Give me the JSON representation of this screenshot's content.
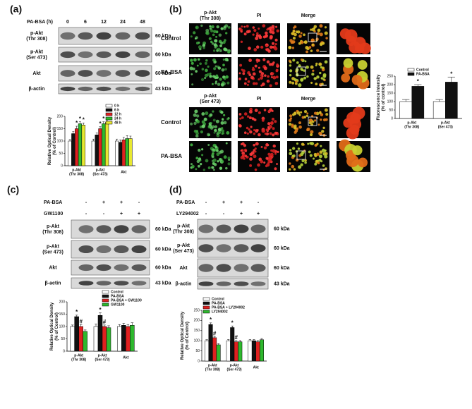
{
  "panels": {
    "a": {
      "label": "(a)",
      "treatment": "PA-BSA (h)",
      "lanes": [
        "0",
        "6",
        "12",
        "24",
        "48"
      ],
      "rows": [
        [
          "p-Akt",
          "(Thr 308)"
        ],
        [
          "p-Akt",
          "(Ser 473)"
        ],
        [
          "Akt"
        ],
        [
          "β-actin"
        ]
      ],
      "sizes": [
        "60 kDa",
        "60 kDa",
        "60 kDa",
        "43 kDa"
      ]
    },
    "b": {
      "label": "(b)",
      "blocks": [
        {
          "columns": [
            [
              "p-Akt",
              "(Thr 308)"
            ],
            [
              "PI"
            ],
            [
              "Merge"
            ]
          ],
          "rows": [
            "Control",
            "PA-BSA"
          ]
        },
        {
          "columns": [
            [
              "p-Akt",
              "(Ser 473)"
            ],
            [
              "PI"
            ],
            [
              "Merge"
            ]
          ],
          "rows": [
            "Control",
            "PA-BSA"
          ]
        }
      ]
    },
    "c": {
      "label": "(c)",
      "treatments": [
        {
          "name": "PA-BSA",
          "signs": [
            "-",
            "+",
            "+",
            "-"
          ]
        },
        {
          "name": "GW1100",
          "signs": [
            "-",
            "-",
            "+",
            "+"
          ]
        }
      ],
      "rows": [
        [
          "p-Akt",
          "(Thr 308)"
        ],
        [
          "p-Akt",
          "(Ser 473)"
        ],
        [
          "Akt"
        ],
        [
          "β-actin"
        ]
      ],
      "sizes": [
        "60 kDa",
        "60 kDa",
        "60 kDa",
        "43 kDa"
      ]
    },
    "d": {
      "label": "(d)",
      "treatments": [
        {
          "name": "PA-BSA",
          "signs": [
            "-",
            "+",
            "+",
            "-"
          ]
        },
        {
          "name": "LY294002",
          "signs": [
            "-",
            "-",
            "+",
            "+"
          ]
        }
      ],
      "rows": [
        [
          "p-Akt",
          "(Thr 308)"
        ],
        [
          "p-Akt",
          "(Ser 473)"
        ],
        [
          "Akt"
        ],
        [
          "β-actin"
        ]
      ],
      "sizes": [
        "60 kDa",
        "60 kDa",
        "60 kDa",
        "43 kDa"
      ]
    }
  },
  "chart_data": [
    {
      "type": "bar",
      "ylabel": [
        "Relative Optical Density",
        "(% of Control)"
      ],
      "categories": [
        [
          "p-Akt",
          "(Thr 308)"
        ],
        [
          "p-Akt",
          "(Ser 473)"
        ],
        [
          "Akt"
        ]
      ],
      "ylim": [
        0,
        200
      ],
      "yticks": [
        0,
        50,
        100,
        150,
        200
      ],
      "series": [
        {
          "name": "0 h",
          "color": "#ffffff",
          "values": [
            100,
            100,
            100
          ],
          "errors": [
            6,
            8,
            8
          ],
          "marks": [
            null,
            null,
            null
          ]
        },
        {
          "name": "6 h",
          "color": "#111111",
          "values": [
            130,
            125,
            95
          ],
          "errors": [
            8,
            8,
            10
          ],
          "marks": [
            null,
            null,
            null
          ]
        },
        {
          "name": "12 h",
          "color": "#e02020",
          "values": [
            150,
            150,
            105
          ],
          "errors": [
            10,
            8,
            10
          ],
          "marks": [
            "*",
            "*",
            null
          ]
        },
        {
          "name": "24 h",
          "color": "#2eb82e",
          "values": [
            170,
            170,
            110
          ],
          "errors": [
            8,
            8,
            12
          ],
          "marks": [
            "*",
            "*",
            null
          ]
        },
        {
          "name": "48 h",
          "color": "#e8e830",
          "values": [
            165,
            175,
            110
          ],
          "errors": [
            8,
            8,
            10
          ],
          "marks": [
            "*",
            null,
            null
          ]
        }
      ]
    },
    {
      "type": "bar",
      "ylabel": [
        "Fluorescence intensity",
        "(% of control)"
      ],
      "categories": [
        [
          "p-Akt",
          "(Thr 308)"
        ],
        [
          "p-Akt",
          "(Ser 473)"
        ]
      ],
      "ylim": [
        0,
        250
      ],
      "yticks": [
        0,
        50,
        100,
        150,
        200,
        250
      ],
      "series": [
        {
          "name": "Control",
          "color": "#ffffff",
          "values": [
            100,
            100
          ],
          "errors": [
            12,
            12
          ],
          "marks": [
            null,
            null
          ]
        },
        {
          "name": "PA-BSA",
          "color": "#111111",
          "values": [
            190,
            215
          ],
          "errors": [
            10,
            30
          ],
          "marks": [
            "*",
            "*"
          ]
        }
      ]
    },
    {
      "type": "bar",
      "ylabel": [
        "Relative Optical Density",
        "(% of Control)"
      ],
      "categories": [
        [
          "p-Akt",
          "(Thr 308)"
        ],
        [
          "p-Akt",
          "(Ser 473)"
        ],
        [
          "Akt"
        ]
      ],
      "ylim": [
        0,
        200
      ],
      "yticks": [
        0,
        50,
        100,
        150,
        200
      ],
      "series": [
        {
          "name": "Control",
          "color": "#ffffff",
          "values": [
            100,
            100,
            100
          ],
          "errors": [
            6,
            10,
            8
          ],
          "marks": [
            null,
            null,
            null
          ]
        },
        {
          "name": "PA-BSA",
          "color": "#111111",
          "values": [
            140,
            145,
            105
          ],
          "errors": [
            6,
            10,
            8
          ],
          "marks": [
            "*",
            "*",
            null
          ]
        },
        {
          "name": "PA-BSA + GW1100",
          "color": "#e02020",
          "values": [
            100,
            100,
            100
          ],
          "errors": [
            8,
            6,
            8
          ],
          "marks": [
            "#",
            "#",
            null
          ]
        },
        {
          "name": "GW1100",
          "color": "#2eb82e",
          "values": [
            80,
            95,
            105
          ],
          "errors": [
            6,
            8,
            10
          ],
          "marks": [
            null,
            null,
            null
          ]
        }
      ]
    },
    {
      "type": "bar",
      "ylabel": [
        "Relative Optical Density",
        "(% of Control)"
      ],
      "categories": [
        [
          "p-Akt",
          "(Thr 308)"
        ],
        [
          "p-Akt",
          "(Ser 473)"
        ],
        [
          "Akt"
        ]
      ],
      "ylim": [
        0,
        250
      ],
      "yticks": [
        0,
        50,
        100,
        150,
        200,
        250
      ],
      "series": [
        {
          "name": "Control",
          "color": "#ffffff",
          "values": [
            100,
            100,
            100
          ],
          "errors": [
            5,
            6,
            6
          ],
          "marks": [
            null,
            null,
            null
          ]
        },
        {
          "name": "PA-BSA",
          "color": "#111111",
          "values": [
            180,
            165,
            100
          ],
          "errors": [
            8,
            8,
            6
          ],
          "marks": [
            "*",
            "*",
            null
          ]
        },
        {
          "name": "PA-BSA + LY294002",
          "color": "#e02020",
          "values": [
            115,
            95,
            95
          ],
          "errors": [
            6,
            6,
            6
          ],
          "marks": [
            "#",
            "#",
            null
          ]
        },
        {
          "name": "LY294002",
          "color": "#2eb82e",
          "values": [
            80,
            95,
            105
          ],
          "errors": [
            6,
            6,
            6
          ],
          "marks": [
            null,
            null,
            null
          ]
        }
      ]
    }
  ]
}
